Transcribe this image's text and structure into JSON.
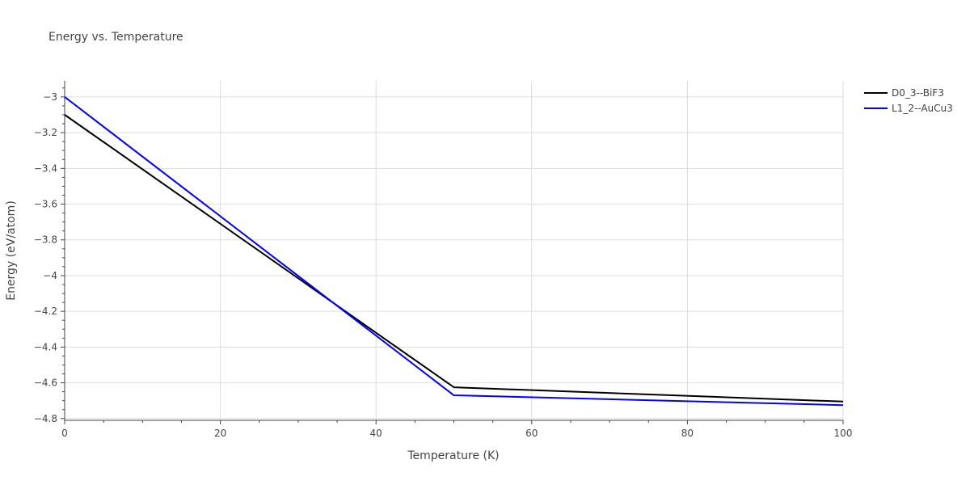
{
  "chart_data": {
    "type": "line",
    "title": "Energy vs. Temperature",
    "xlabel": "Temperature (K)",
    "ylabel": "Energy (eV/atom)",
    "xlim": [
      0,
      100
    ],
    "ylim": [
      -4.81,
      -2.91
    ],
    "x_ticks": [
      0,
      20,
      40,
      60,
      80,
      100
    ],
    "x_tick_labels": [
      "0",
      "20",
      "40",
      "60",
      "80",
      "100"
    ],
    "y_ticks": [
      -3.0,
      -3.2,
      -3.4,
      -3.6,
      -3.8,
      -4.0,
      -4.2,
      -4.4,
      -4.6,
      -4.8
    ],
    "y_tick_labels": [
      "−3",
      "−3.2",
      "−3.4",
      "−3.6",
      "−3.8",
      "−4",
      "−4.2",
      "−4.4",
      "−4.6",
      "−4.8"
    ],
    "grid": true,
    "legend_position": "top-right",
    "series": [
      {
        "name": "D0_3--BiF3",
        "color": "#000000",
        "x": [
          0,
          50,
          100
        ],
        "y": [
          -3.1,
          -4.625,
          -4.705
        ]
      },
      {
        "name": "L1_2--AuCu3",
        "color": "#0000ff",
        "x": [
          0,
          50,
          100
        ],
        "y": [
          -3.0,
          -4.67,
          -4.725
        ]
      }
    ]
  }
}
